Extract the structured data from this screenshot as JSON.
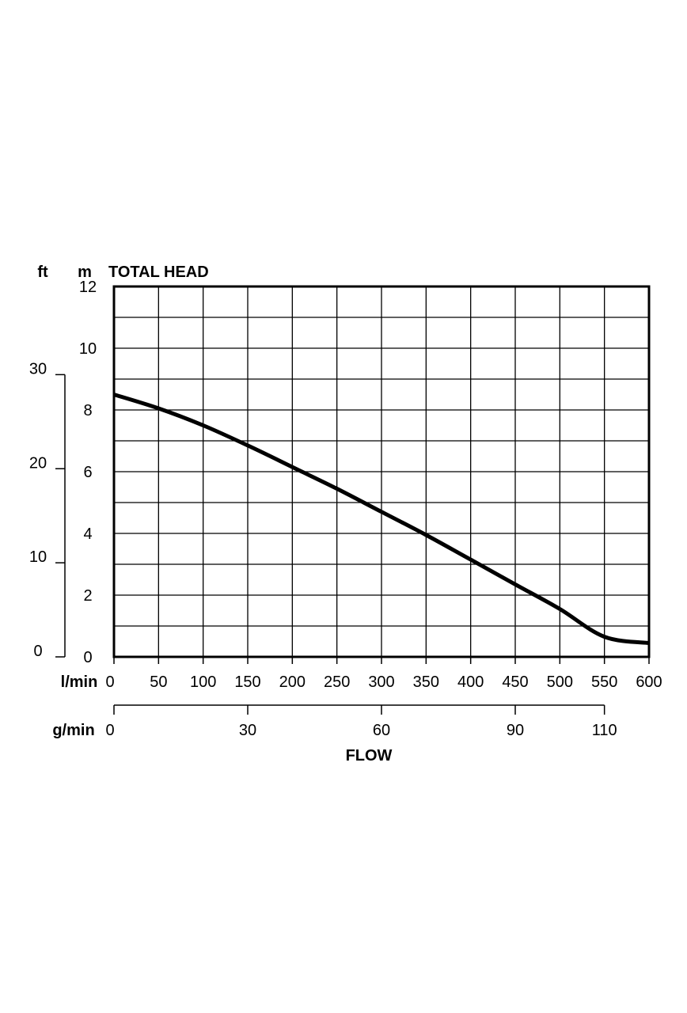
{
  "chart_data": {
    "type": "line",
    "title": "TOTAL HEAD",
    "xlabel": "FLOW",
    "left_unit_ft": "ft",
    "left_unit_m": "m",
    "x_unit_lmin": "l/min",
    "x_unit_gmin": "g/min",
    "xlim": [
      0,
      600
    ],
    "ylim": [
      0,
      12
    ],
    "x_ticks": [
      "0",
      "50",
      "100",
      "150",
      "200",
      "250",
      "300",
      "350",
      "400",
      "450",
      "500",
      "550",
      "600"
    ],
    "x_tick_values": [
      0,
      50,
      100,
      150,
      200,
      250,
      300,
      350,
      400,
      450,
      500,
      550,
      600
    ],
    "y_ticks_m": [
      "0",
      "2",
      "4",
      "6",
      "8",
      "10",
      "12"
    ],
    "y_tick_values_m": [
      0,
      2,
      4,
      6,
      8,
      10,
      12
    ],
    "y_ticks_ft": [
      "0",
      "10",
      "20",
      "30"
    ],
    "y_tick_values_ft": [
      0,
      10,
      20,
      30
    ],
    "g_ticks": [
      "0",
      "30",
      "60",
      "90",
      "110"
    ],
    "g_tick_values": [
      0,
      30,
      60,
      90,
      110
    ],
    "grid": true,
    "series": [
      {
        "x": [
          0,
          50,
          100,
          150,
          200,
          250,
          300,
          350,
          400,
          450,
          500,
          550,
          600
        ],
        "y": [
          8.5,
          8.05,
          7.5,
          6.85,
          6.15,
          5.45,
          4.7,
          3.95,
          3.15,
          2.35,
          1.55,
          0.65,
          0.45
        ]
      }
    ],
    "colors": {
      "line": "#000000",
      "grid": "#000000"
    }
  }
}
